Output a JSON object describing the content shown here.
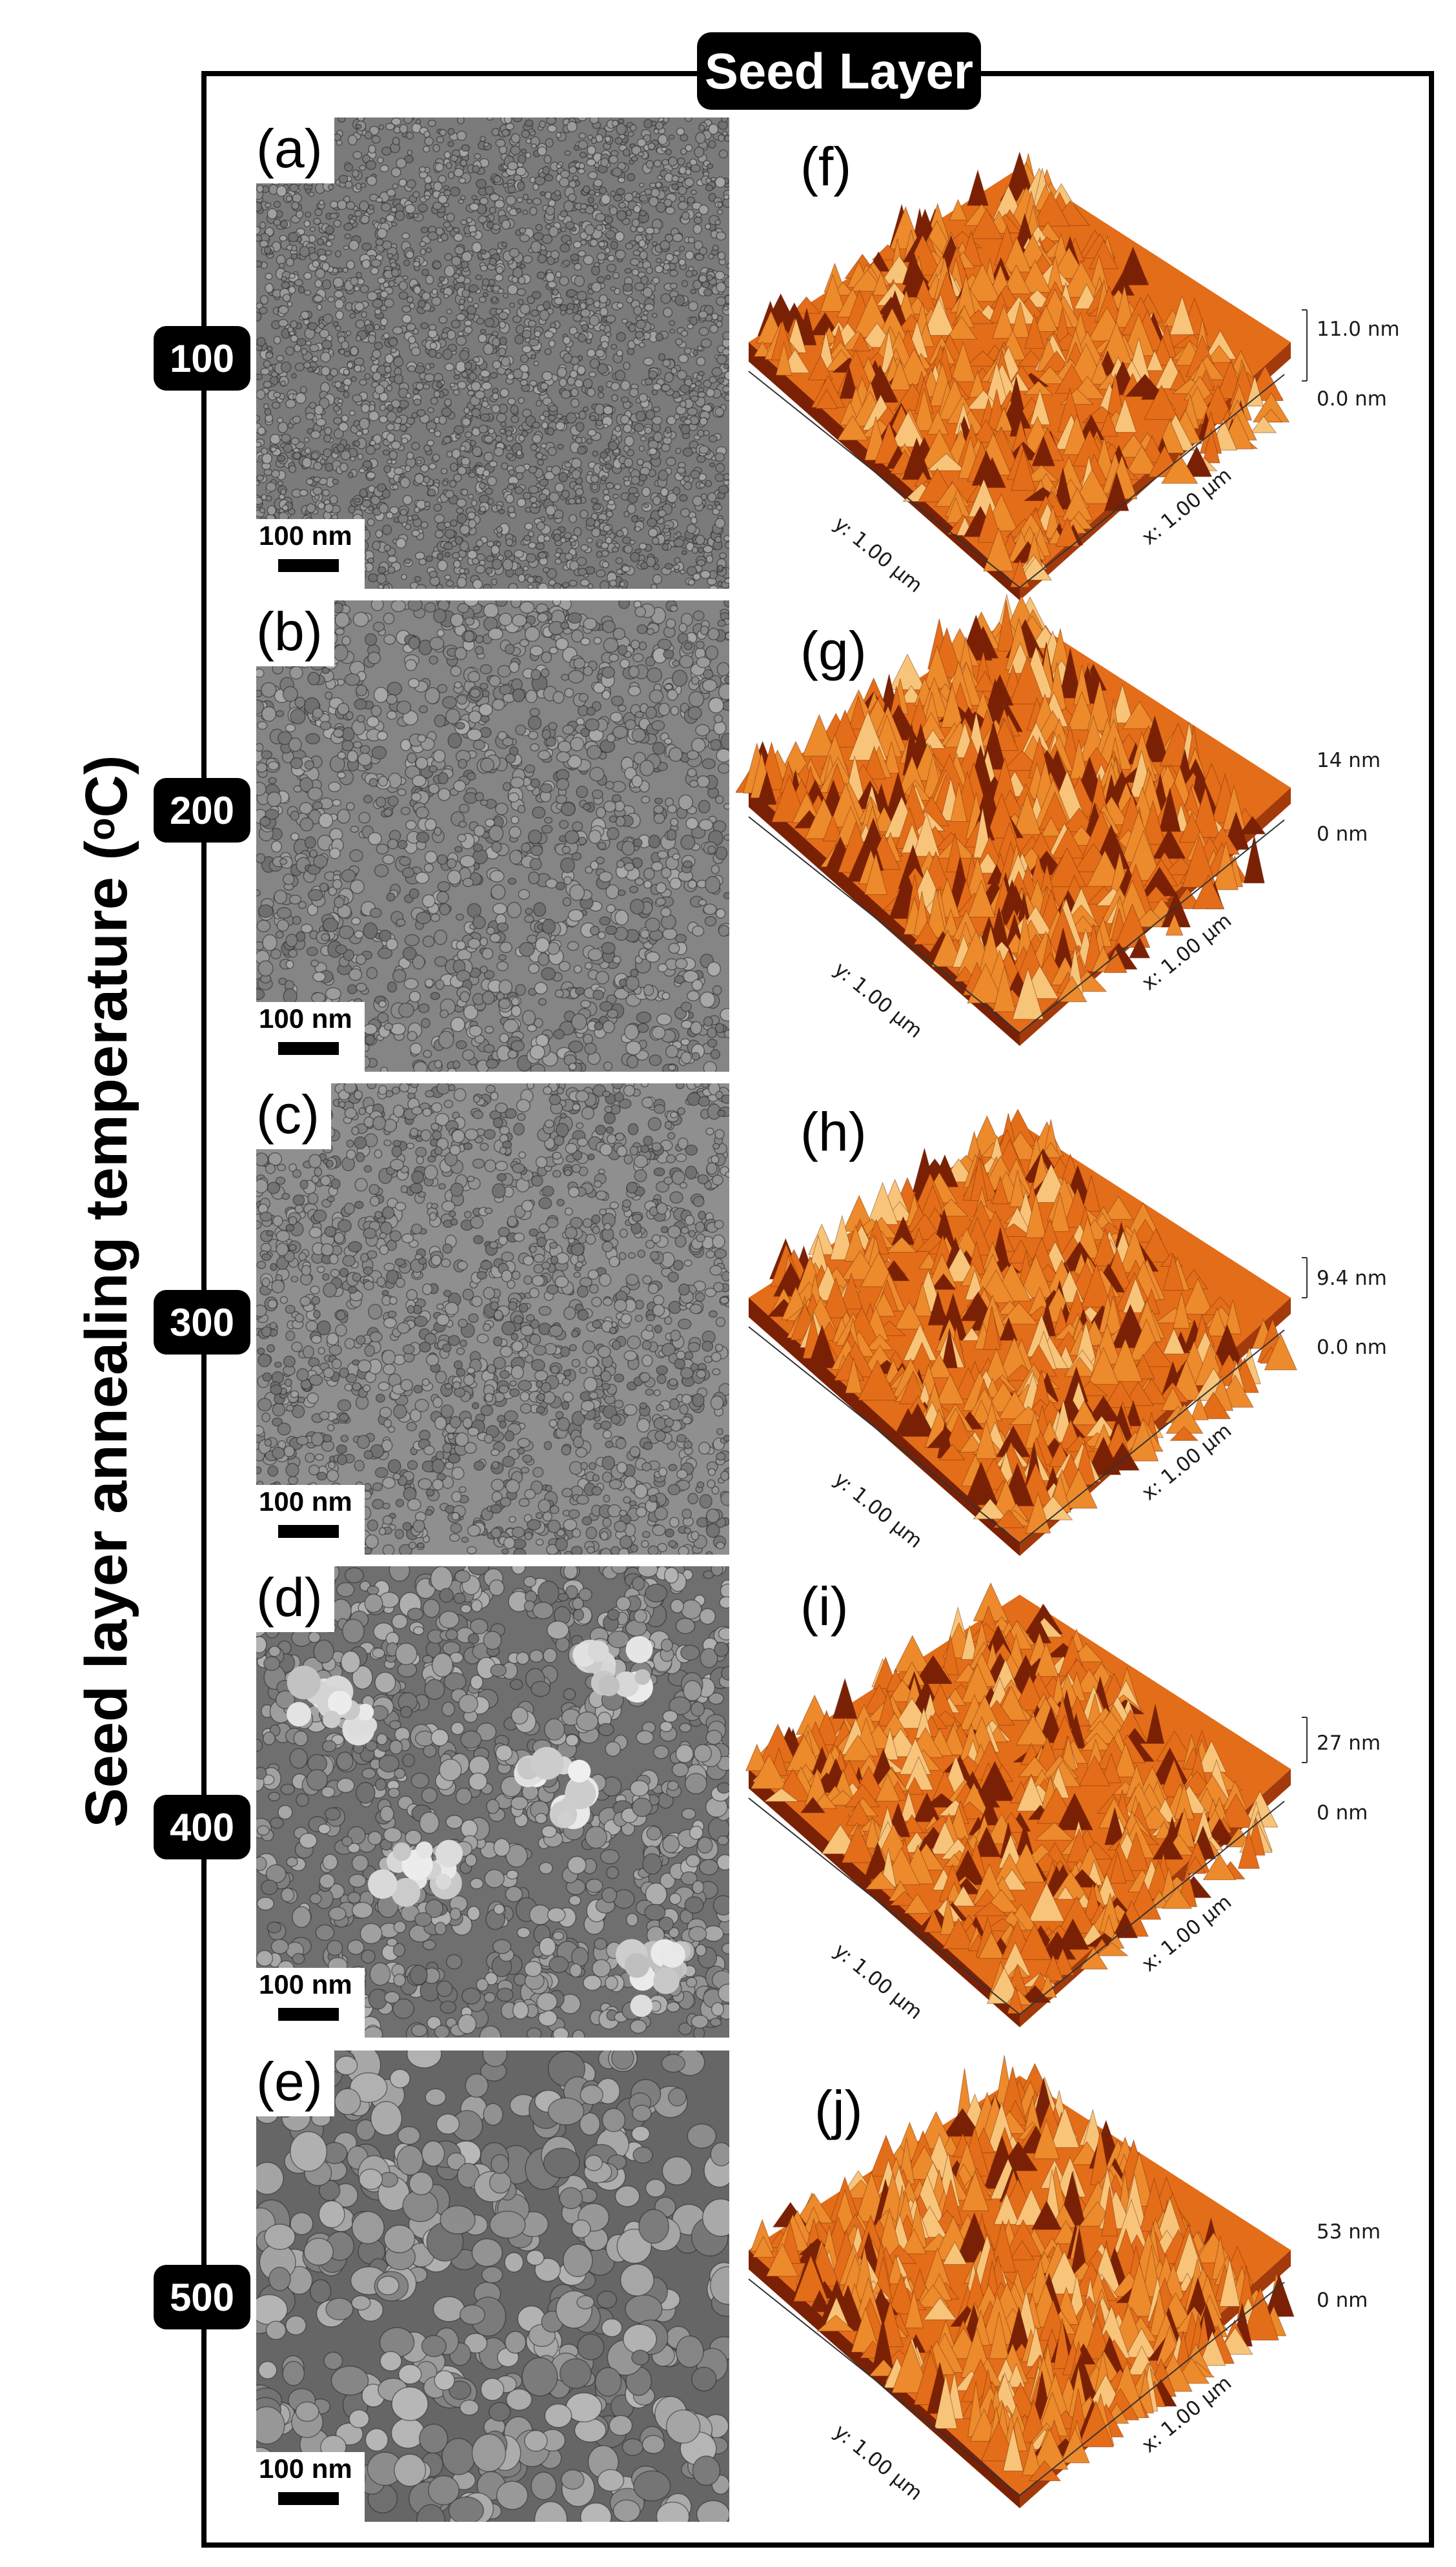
{
  "frame": {
    "title": "Seed Layer",
    "y_axis_title": "Seed layer annealing temperature (",
    "y_axis_unit_sup": "o",
    "y_axis_unit_end": "C)"
  },
  "rows": [
    {
      "temperature": "100",
      "sem": {
        "label": "(a)",
        "scale_bar": "100 nm",
        "texture": "fine"
      },
      "afm": {
        "label": "(f)",
        "z_max": "11.0 nm",
        "z_min": "0.0 nm",
        "x_axis": "x: 1.00 µm",
        "y_axis": "y: 1.00 µm"
      }
    },
    {
      "temperature": "200",
      "sem": {
        "label": "(b)",
        "scale_bar": "100 nm",
        "texture": "fine-medium"
      },
      "afm": {
        "label": "(g)",
        "z_max": "14 nm",
        "z_min": "0 nm",
        "x_axis": "x: 1.00 µm",
        "y_axis": "y: 1.00 µm"
      }
    },
    {
      "temperature": "300",
      "sem": {
        "label": "(c)",
        "scale_bar": "100 nm",
        "texture": "fine-light"
      },
      "afm": {
        "label": "(h)",
        "z_max": "9.4 nm",
        "z_min": "0.0 nm",
        "x_axis": "x: 1.00 µm",
        "y_axis": "y: 1.00 µm"
      }
    },
    {
      "temperature": "400",
      "sem": {
        "label": "(d)",
        "scale_bar": "100 nm",
        "texture": "medium-clusters"
      },
      "afm": {
        "label": "(i)",
        "z_max": "27 nm",
        "z_min": "0 nm",
        "x_axis": "x: 1.00 µm",
        "y_axis": "y: 1.00 µm"
      }
    },
    {
      "temperature": "500",
      "sem": {
        "label": "(e)",
        "scale_bar": "100 nm",
        "texture": "coarse"
      },
      "afm": {
        "label": "(j)",
        "z_max": "53 nm",
        "z_min": "0 nm",
        "x_axis": "x: 1.00 µm",
        "y_axis": "y: 1.00 µm"
      }
    }
  ],
  "colors": {
    "afm_light": "#f7c479",
    "afm_mid": "#e36d19",
    "afm_dark": "#7a2105",
    "sem_gray": "#8a8a8a"
  }
}
